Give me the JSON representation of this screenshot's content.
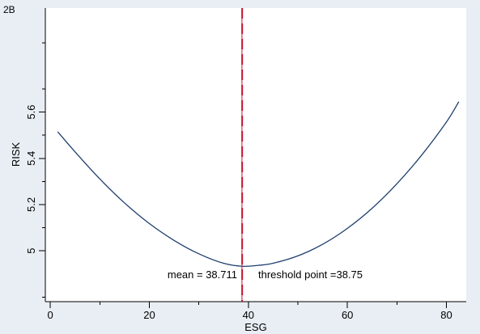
{
  "chart_data": {
    "type": "line",
    "panel_label": "2B",
    "title": "",
    "xlabel": "ESG",
    "ylabel": "RISK",
    "xlim": [
      -1,
      84
    ],
    "ylim": [
      4.78,
      6.05
    ],
    "x_ticks": [
      0,
      20,
      40,
      60,
      80
    ],
    "x_minor_ticks": [
      10,
      30,
      50,
      70
    ],
    "y_ticks": [
      5,
      5.2,
      5.4,
      5.6
    ],
    "y_tick_labels": [
      "5",
      "5.2",
      "5.4",
      "5.6"
    ],
    "y_minor_ticks": [
      4.8,
      5.1,
      5.3,
      5.5,
      5.7,
      5.9
    ],
    "grid": false,
    "background": "#e8eef4",
    "curve_color": "#1f3f6e",
    "vline_color": "#c4122f",
    "series": [
      {
        "x": [
          1.5,
          5,
          10,
          15,
          20,
          25,
          30,
          35,
          38.75,
          42,
          45,
          50,
          55,
          60,
          65,
          70,
          75,
          80,
          82.5
        ],
        "values": [
          5.515,
          5.428,
          5.311,
          5.207,
          5.118,
          5.045,
          4.987,
          4.946,
          4.933,
          4.937,
          4.946,
          4.978,
          5.028,
          5.097,
          5.184,
          5.29,
          5.414,
          5.557,
          5.645
        ]
      }
    ],
    "vertical_lines": [
      {
        "x": 38.711,
        "style": "solid"
      },
      {
        "x": 38.75,
        "style": "dashed"
      }
    ],
    "annotations": {
      "mean": "mean = 38.711",
      "threshold": "threshold point =38.75"
    }
  }
}
